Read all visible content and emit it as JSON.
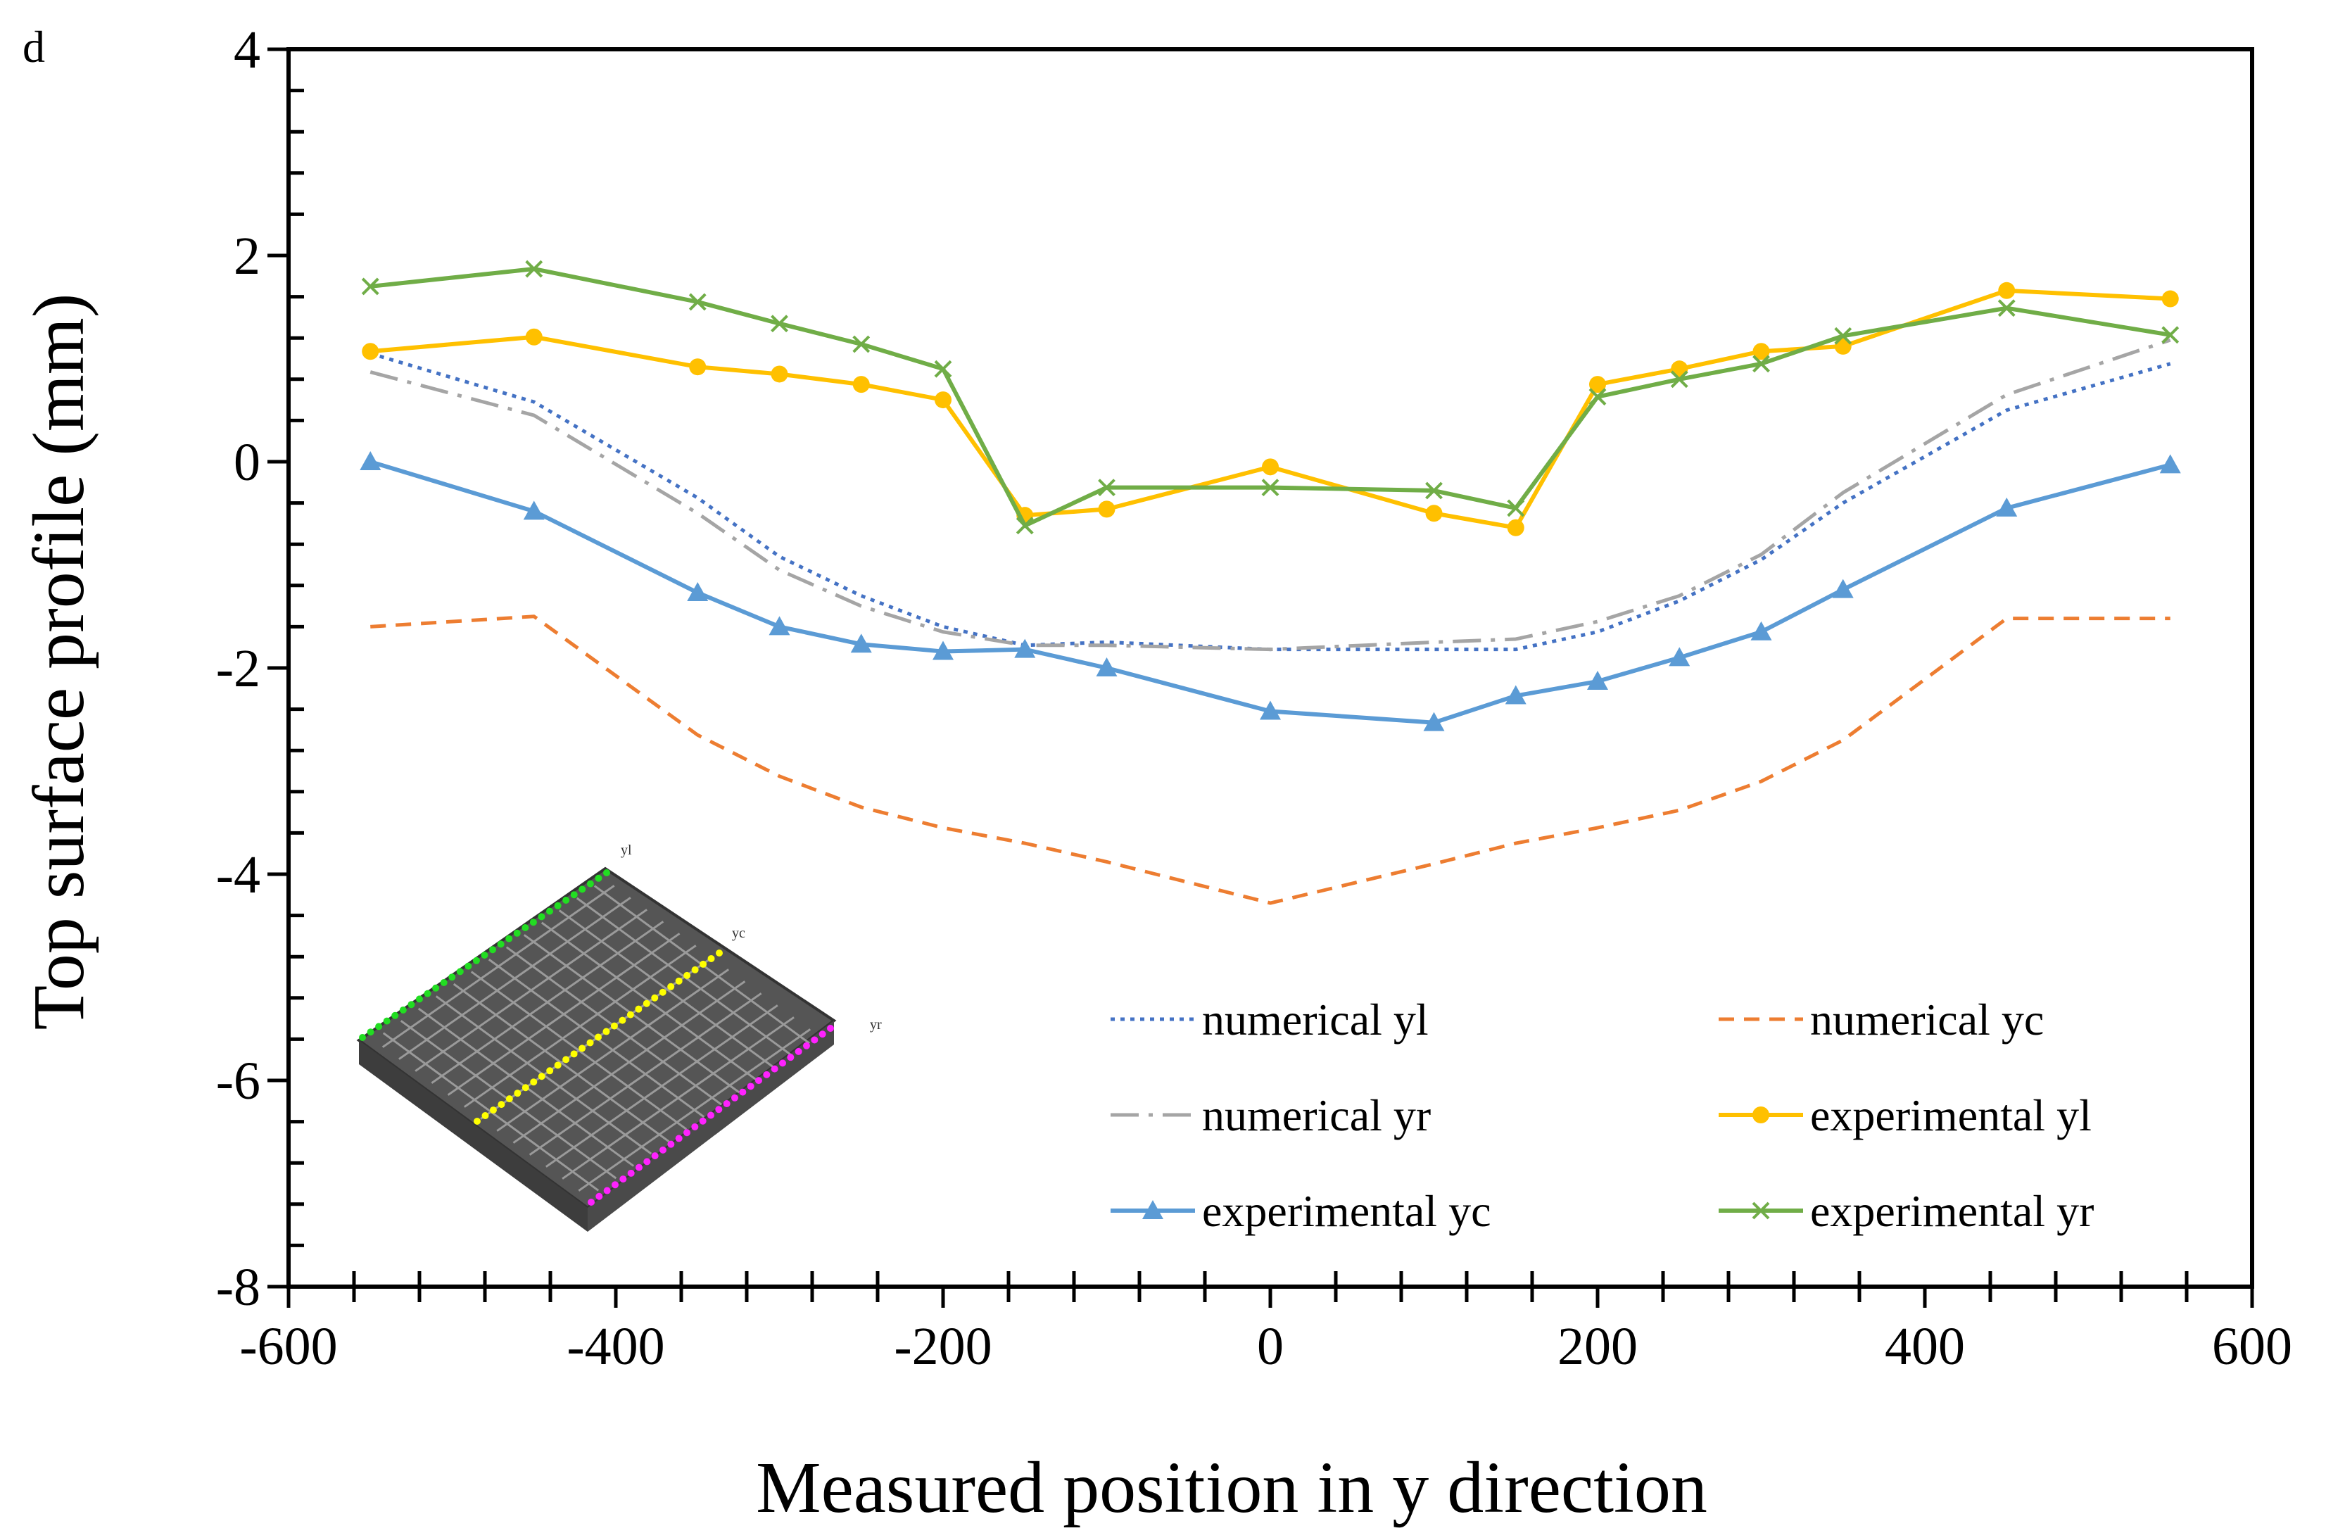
{
  "panel_label": "d",
  "colors": {
    "numerical_yl": "#4472c4",
    "numerical_yc": "#ed7d31",
    "numerical_yr": "#a5a5a5",
    "experimental_yl": "#ffc000",
    "experimental_yc": "#5b9bd5",
    "experimental_yr": "#70ad47"
  },
  "inset": {
    "labels": [
      "yl",
      "yc",
      "yr"
    ],
    "marker_colors": [
      "#22dd22",
      "#ffff00",
      "#ff22ff"
    ]
  },
  "chart_data": {
    "type": "line",
    "title": "",
    "xlabel": "Measured position in y direction",
    "ylabel": "Top surface profile (mm)",
    "xlim": [
      -600,
      600
    ],
    "ylim": [
      -8,
      4
    ],
    "xticks": [
      -600,
      -400,
      -200,
      0,
      200,
      400,
      600
    ],
    "yticks": [
      4,
      2,
      0,
      -2,
      -4,
      -6,
      -8
    ],
    "xtick_labels": [
      "-600",
      "-400",
      "-200",
      "0",
      "200",
      "400",
      "600"
    ],
    "ytick_labels": [
      "4",
      "2",
      "0",
      "-2",
      "-4",
      "-6",
      "-8"
    ],
    "x_minor_step": 40,
    "y_minor_step": 0.4,
    "legend_position": "bottom-right",
    "series": [
      {
        "name": "numerical yl",
        "key": "numerical_yl",
        "dash": "dotted",
        "marker": "none",
        "x": [
          -550,
          -450,
          -350,
          -300,
          -250,
          -200,
          -150,
          -100,
          0,
          100,
          150,
          200,
          250,
          300,
          350,
          450,
          550
        ],
        "y": [
          1.05,
          0.58,
          -0.35,
          -0.92,
          -1.3,
          -1.6,
          -1.78,
          -1.75,
          -1.82,
          -1.82,
          -1.82,
          -1.65,
          -1.35,
          -0.95,
          -0.4,
          0.5,
          0.95
        ]
      },
      {
        "name": "numerical yc",
        "key": "numerical_yc",
        "dash": "dashed",
        "marker": "none",
        "x": [
          -550,
          -450,
          -350,
          -300,
          -250,
          -200,
          -150,
          -100,
          0,
          100,
          150,
          200,
          250,
          300,
          350,
          450,
          550
        ],
        "y": [
          -1.6,
          -1.5,
          -2.65,
          -3.05,
          -3.35,
          -3.55,
          -3.7,
          -3.88,
          -4.28,
          -3.9,
          -3.7,
          -3.55,
          -3.38,
          -3.1,
          -2.7,
          -1.52,
          -1.52
        ]
      },
      {
        "name": "numerical yr",
        "key": "numerical_yr",
        "dash": "dashdot",
        "marker": "none",
        "x": [
          -550,
          -450,
          -350,
          -300,
          -250,
          -200,
          -150,
          -100,
          0,
          100,
          150,
          200,
          250,
          300,
          350,
          450,
          550
        ],
        "y": [
          0.87,
          0.45,
          -0.5,
          -1.05,
          -1.4,
          -1.65,
          -1.78,
          -1.78,
          -1.82,
          -1.75,
          -1.72,
          -1.55,
          -1.3,
          -0.9,
          -0.3,
          0.65,
          1.18
        ]
      },
      {
        "name": "experimental yl",
        "key": "experimental_yl",
        "dash": "solid",
        "marker": "circle",
        "x": [
          -550,
          -450,
          -350,
          -300,
          -250,
          -200,
          -150,
          -100,
          0,
          100,
          150,
          200,
          250,
          300,
          350,
          450,
          550
        ],
        "y": [
          1.07,
          1.21,
          0.92,
          0.85,
          0.75,
          0.6,
          -0.52,
          -0.46,
          -0.05,
          -0.5,
          -0.64,
          0.75,
          0.9,
          1.07,
          1.12,
          1.66,
          1.58
        ]
      },
      {
        "name": "experimental yc",
        "key": "experimental_yc",
        "dash": "solid",
        "marker": "triangle",
        "x": [
          -550,
          -450,
          -350,
          -300,
          -250,
          -200,
          -150,
          -100,
          0,
          100,
          150,
          200,
          250,
          300,
          350,
          450,
          550
        ],
        "y": [
          0,
          -0.48,
          -1.27,
          -1.6,
          -1.77,
          -1.84,
          -1.82,
          -2.0,
          -2.42,
          -2.53,
          -2.27,
          -2.13,
          -1.9,
          -1.65,
          -1.24,
          -0.45,
          -0.03
        ]
      },
      {
        "name": "experimental yr",
        "key": "experimental_yr",
        "dash": "solid",
        "marker": "x",
        "x": [
          -550,
          -450,
          -350,
          -300,
          -250,
          -200,
          -150,
          -100,
          0,
          100,
          150,
          200,
          250,
          300,
          350,
          450,
          550
        ],
        "y": [
          1.7,
          1.87,
          1.55,
          1.34,
          1.14,
          0.9,
          -0.62,
          -0.25,
          -0.25,
          -0.28,
          -0.45,
          0.63,
          0.8,
          0.95,
          1.22,
          1.49,
          1.23
        ]
      }
    ]
  }
}
